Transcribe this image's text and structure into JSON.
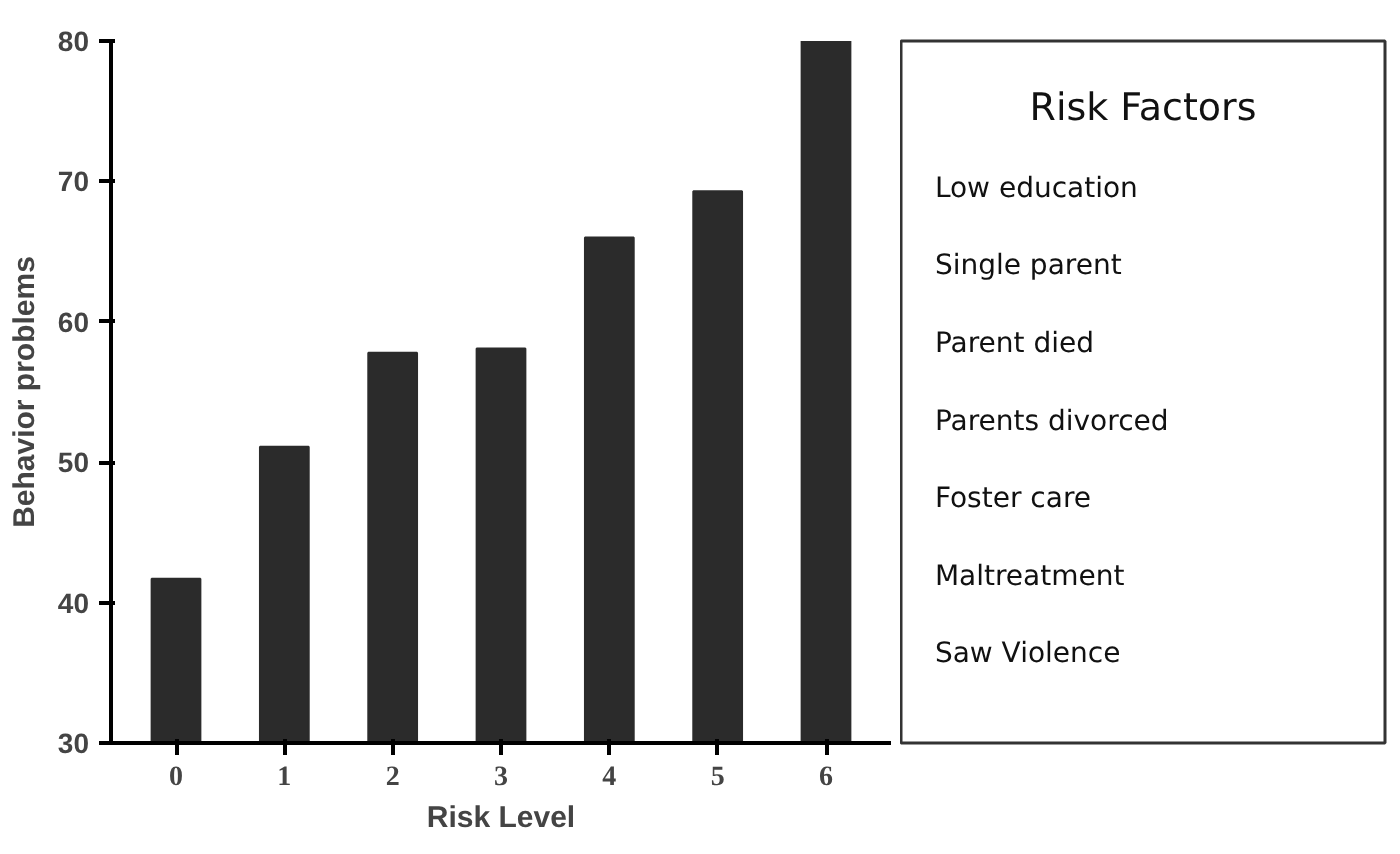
{
  "chart_data": [
    {
      "type": "bar",
      "xlabel": "Risk Level",
      "ylabel": "Behavior problems",
      "categories": [
        "0",
        "1",
        "2",
        "3",
        "4",
        "5",
        "6"
      ],
      "values": [
        41.7,
        51.1,
        57.8,
        58.1,
        66.0,
        69.3,
        80.0
      ],
      "color": "#2b2b2b",
      "ylim": [
        30,
        80
      ],
      "yticks": [
        30,
        40,
        50,
        60,
        70,
        80
      ],
      "grid": false
    },
    {
      "type": "other",
      "title": "Risk Factors",
      "annotations": [
        "Low education",
        "Single parent",
        "Parent died",
        "Parents divorced",
        "Foster care",
        "Maltreatment",
        "Saw Violence"
      ]
    }
  ]
}
